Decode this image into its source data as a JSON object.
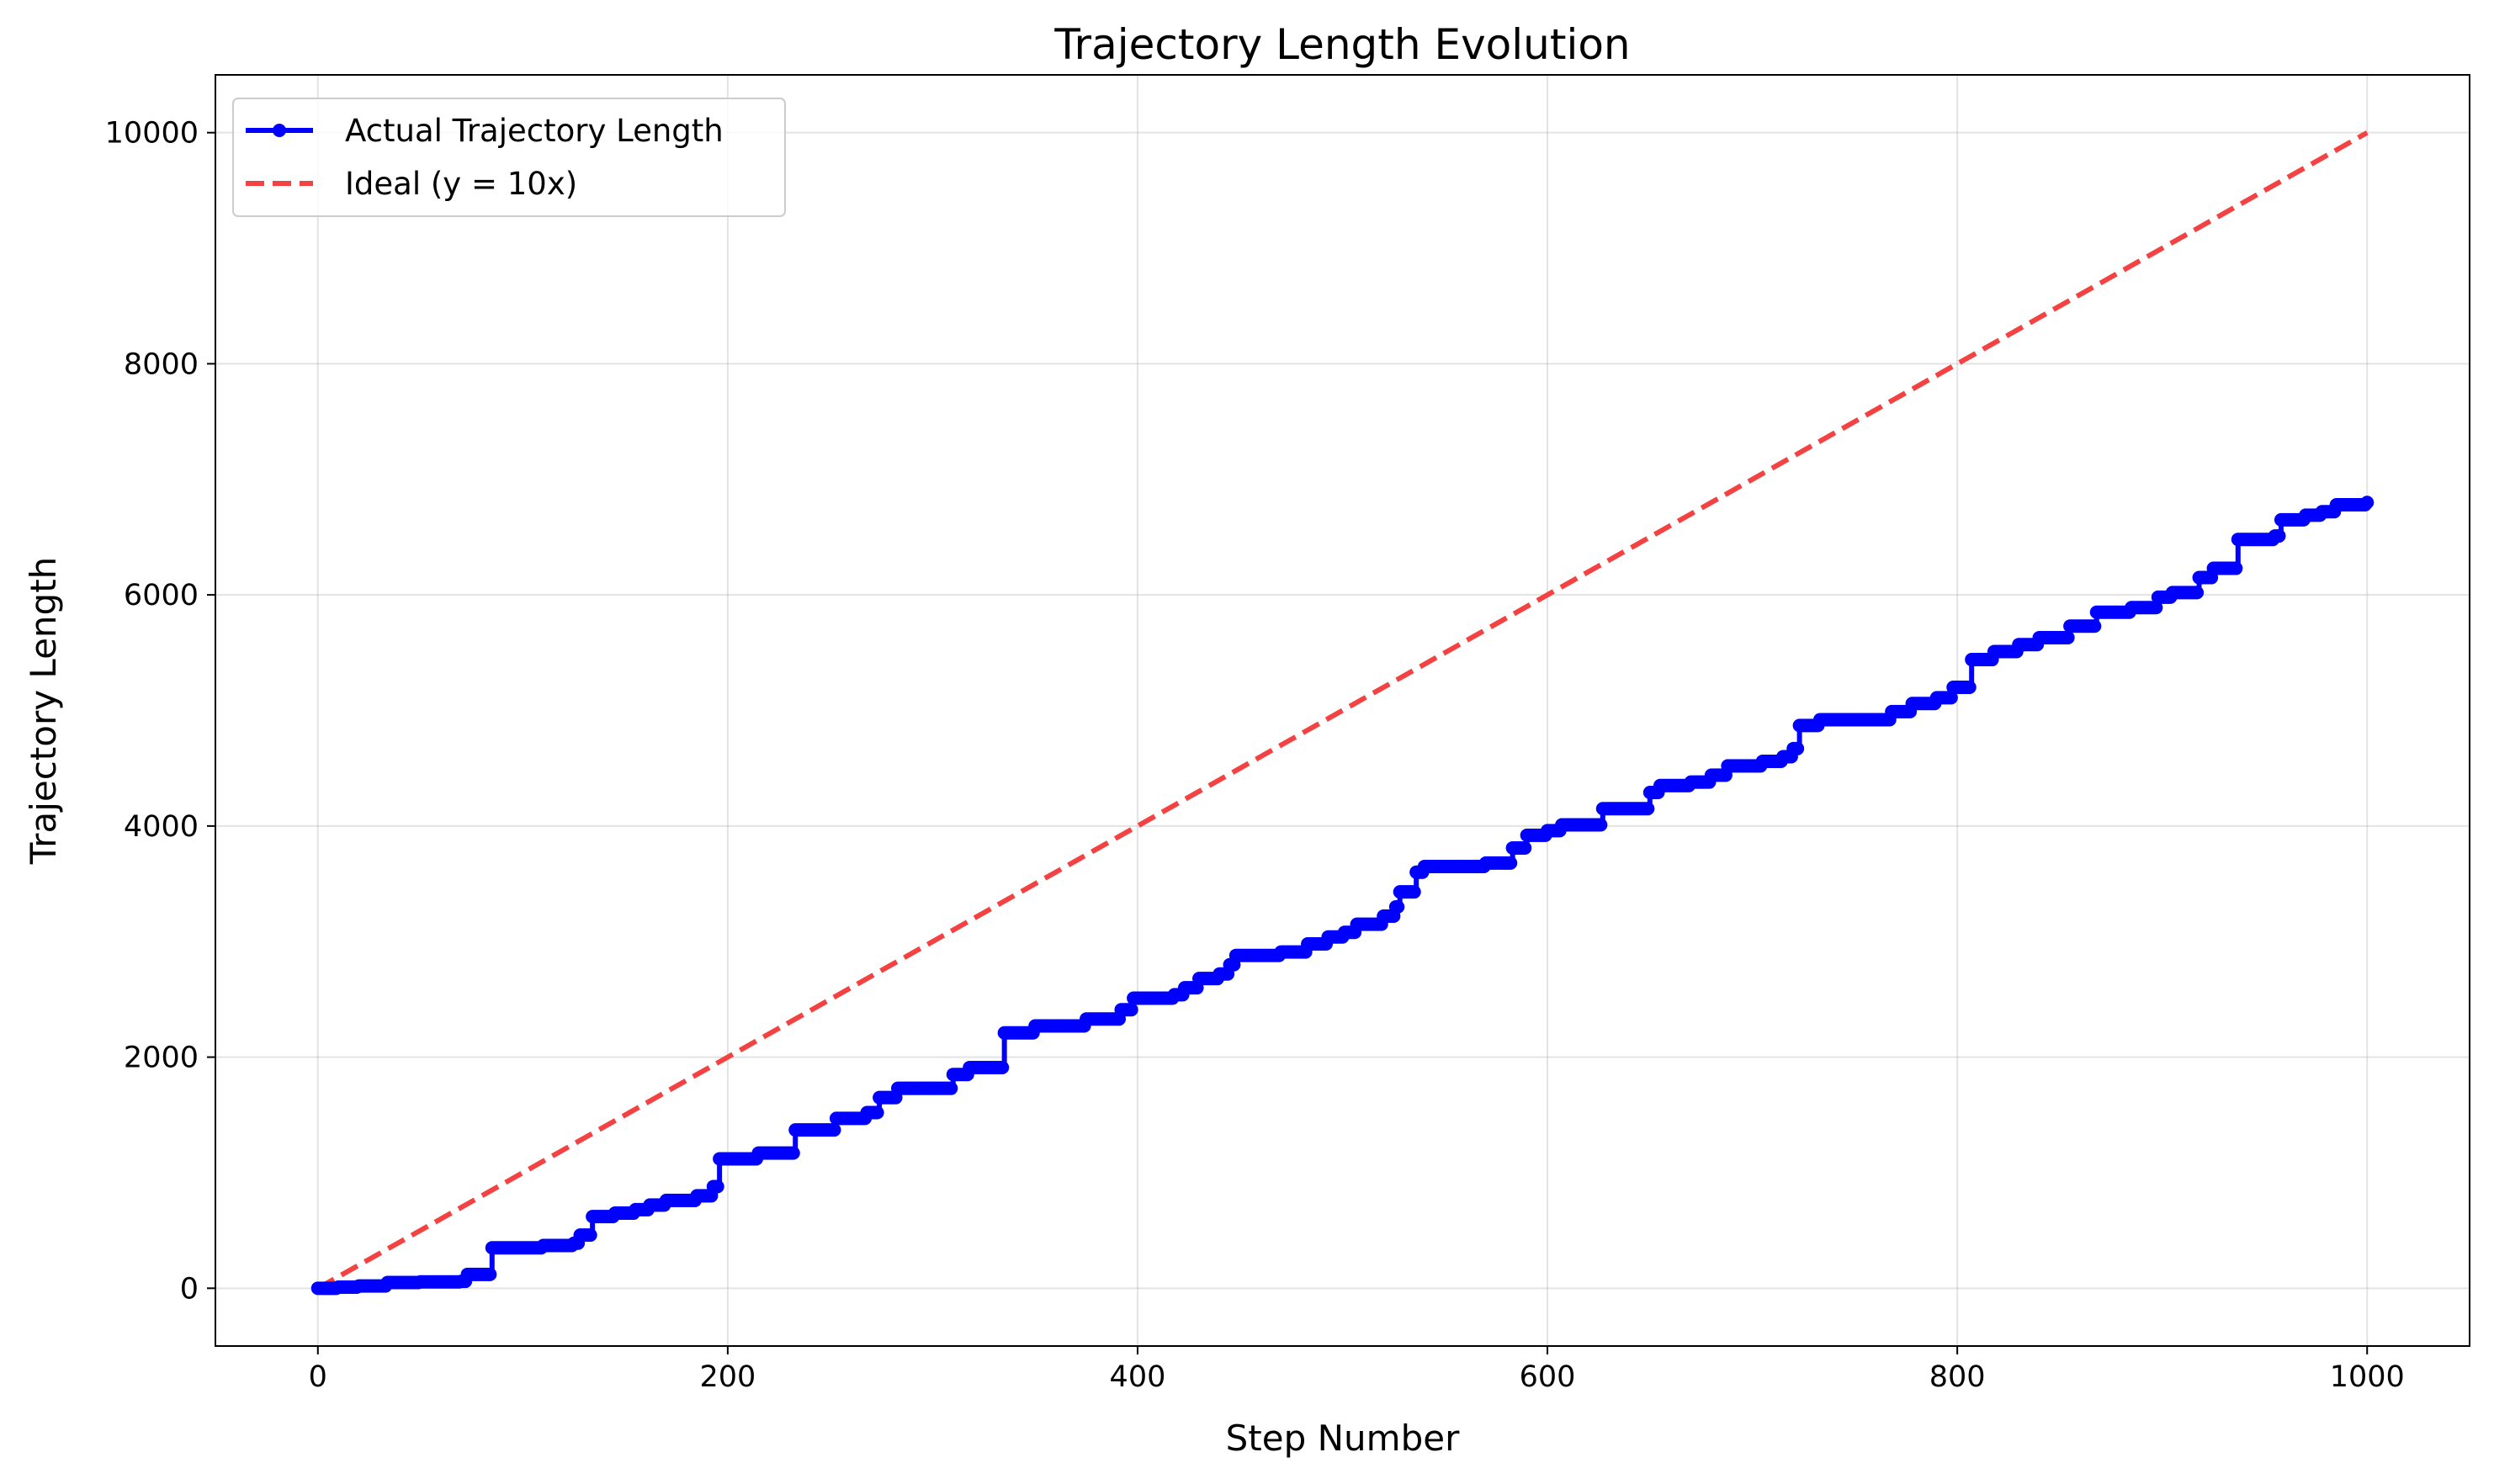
{
  "chart_data": {
    "type": "line",
    "title": "Trajectory Length Evolution",
    "xlabel": "Step Number",
    "ylabel": "Trajectory Length",
    "xlim": [
      -50,
      1050
    ],
    "ylim": [
      -500,
      10500
    ],
    "xticks": [
      0,
      200,
      400,
      600,
      800,
      1000
    ],
    "yticks": [
      0,
      2000,
      4000,
      6000,
      8000,
      10000
    ],
    "grid": true,
    "legend_position": "top-left",
    "series": [
      {
        "name": "Actual Trajectory Length",
        "color": "#0000ff",
        "style": "solid-markers",
        "steps": [
          [
            0,
            0
          ],
          [
            10,
            10
          ],
          [
            20,
            20
          ],
          [
            34,
            50
          ],
          [
            50,
            55
          ],
          [
            70,
            60
          ],
          [
            73,
            120
          ],
          [
            85,
            350
          ],
          [
            110,
            370
          ],
          [
            125,
            390
          ],
          [
            128,
            460
          ],
          [
            134,
            620
          ],
          [
            145,
            650
          ],
          [
            155,
            680
          ],
          [
            162,
            720
          ],
          [
            170,
            760
          ],
          [
            185,
            800
          ],
          [
            193,
            880
          ],
          [
            196,
            1120
          ],
          [
            215,
            1170
          ],
          [
            233,
            1370
          ],
          [
            253,
            1470
          ],
          [
            268,
            1520
          ],
          [
            274,
            1650
          ],
          [
            283,
            1730
          ],
          [
            310,
            1850
          ],
          [
            318,
            1910
          ],
          [
            335,
            2210
          ],
          [
            350,
            2270
          ],
          [
            375,
            2330
          ],
          [
            392,
            2410
          ],
          [
            398,
            2510
          ],
          [
            418,
            2540
          ],
          [
            423,
            2600
          ],
          [
            430,
            2680
          ],
          [
            440,
            2720
          ],
          [
            445,
            2800
          ],
          [
            448,
            2880
          ],
          [
            470,
            2910
          ],
          [
            483,
            2980
          ],
          [
            493,
            3040
          ],
          [
            501,
            3080
          ],
          [
            507,
            3150
          ],
          [
            520,
            3220
          ],
          [
            526,
            3300
          ],
          [
            528,
            3430
          ],
          [
            536,
            3600
          ],
          [
            540,
            3650
          ],
          [
            570,
            3680
          ],
          [
            583,
            3810
          ],
          [
            590,
            3920
          ],
          [
            600,
            3960
          ],
          [
            607,
            4010
          ],
          [
            627,
            4150
          ],
          [
            650,
            4290
          ],
          [
            655,
            4350
          ],
          [
            670,
            4380
          ],
          [
            680,
            4440
          ],
          [
            688,
            4520
          ],
          [
            705,
            4560
          ],
          [
            715,
            4600
          ],
          [
            720,
            4670
          ],
          [
            723,
            4870
          ],
          [
            733,
            4920
          ],
          [
            768,
            4990
          ],
          [
            778,
            5060
          ],
          [
            790,
            5110
          ],
          [
            798,
            5200
          ],
          [
            807,
            5440
          ],
          [
            818,
            5510
          ],
          [
            830,
            5570
          ],
          [
            840,
            5630
          ],
          [
            855,
            5730
          ],
          [
            868,
            5850
          ],
          [
            885,
            5890
          ],
          [
            898,
            5980
          ],
          [
            905,
            6020
          ],
          [
            918,
            6150
          ],
          [
            925,
            6230
          ],
          [
            937,
            6480
          ],
          [
            955,
            6510
          ],
          [
            958,
            6650
          ],
          [
            970,
            6690
          ],
          [
            978,
            6720
          ],
          [
            985,
            6780
          ],
          [
            1000,
            6800
          ]
        ]
      },
      {
        "name": "Ideal (y = 10x)",
        "color": "#f44242",
        "style": "dashed",
        "points": [
          [
            0,
            0
          ],
          [
            1000,
            10000
          ]
        ]
      }
    ]
  }
}
